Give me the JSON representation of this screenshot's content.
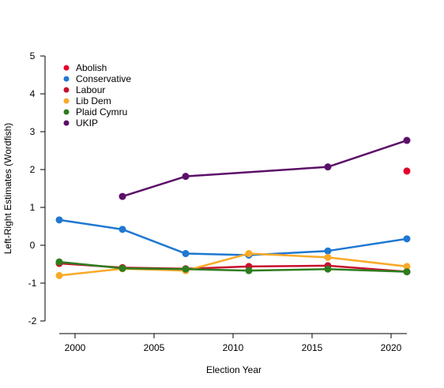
{
  "chart_data": {
    "type": "line",
    "title": "",
    "xlabel": "Election Year",
    "ylabel": "Left-Right Estimates (Wordfish)",
    "xlim": [
      1999,
      2021
    ],
    "ylim": [
      -2,
      5
    ],
    "xticks": [
      2000,
      2005,
      2010,
      2015,
      2020
    ],
    "yticks": [
      -2,
      -1,
      0,
      1,
      2,
      3,
      4,
      5
    ],
    "grid": false,
    "legend_position": "top-left",
    "series": [
      {
        "name": "Abolish",
        "color": "#e4002b",
        "x": [
          2021
        ],
        "y": [
          1.96
        ]
      },
      {
        "name": "Conservative",
        "color": "#1f78d1",
        "x": [
          1999,
          2003,
          2007,
          2011,
          2016,
          2021
        ],
        "y": [
          0.67,
          0.42,
          -0.22,
          -0.26,
          -0.15,
          0.17
        ]
      },
      {
        "name": "Labour",
        "color": "#c8102e",
        "x": [
          1999,
          2003,
          2007,
          2011,
          2016,
          2021
        ],
        "y": [
          -0.48,
          -0.59,
          -0.62,
          -0.56,
          -0.54,
          -0.7
        ]
      },
      {
        "name": "Lib Dem",
        "color": "#faa928",
        "x": [
          1999,
          2003,
          2007,
          2011,
          2016,
          2021
        ],
        "y": [
          -0.8,
          -0.62,
          -0.67,
          -0.22,
          -0.32,
          -0.56
        ]
      },
      {
        "name": "Plaid Cymru",
        "color": "#2e7d1f",
        "x": [
          1999,
          2003,
          2007,
          2011,
          2016,
          2021
        ],
        "y": [
          -0.44,
          -0.61,
          -0.63,
          -0.67,
          -0.63,
          -0.7
        ]
      },
      {
        "name": "UKIP",
        "color": "#5c0f69",
        "x": [
          2003,
          2007,
          2016,
          2021
        ],
        "y": [
          1.29,
          1.82,
          2.07,
          2.77
        ]
      }
    ]
  }
}
